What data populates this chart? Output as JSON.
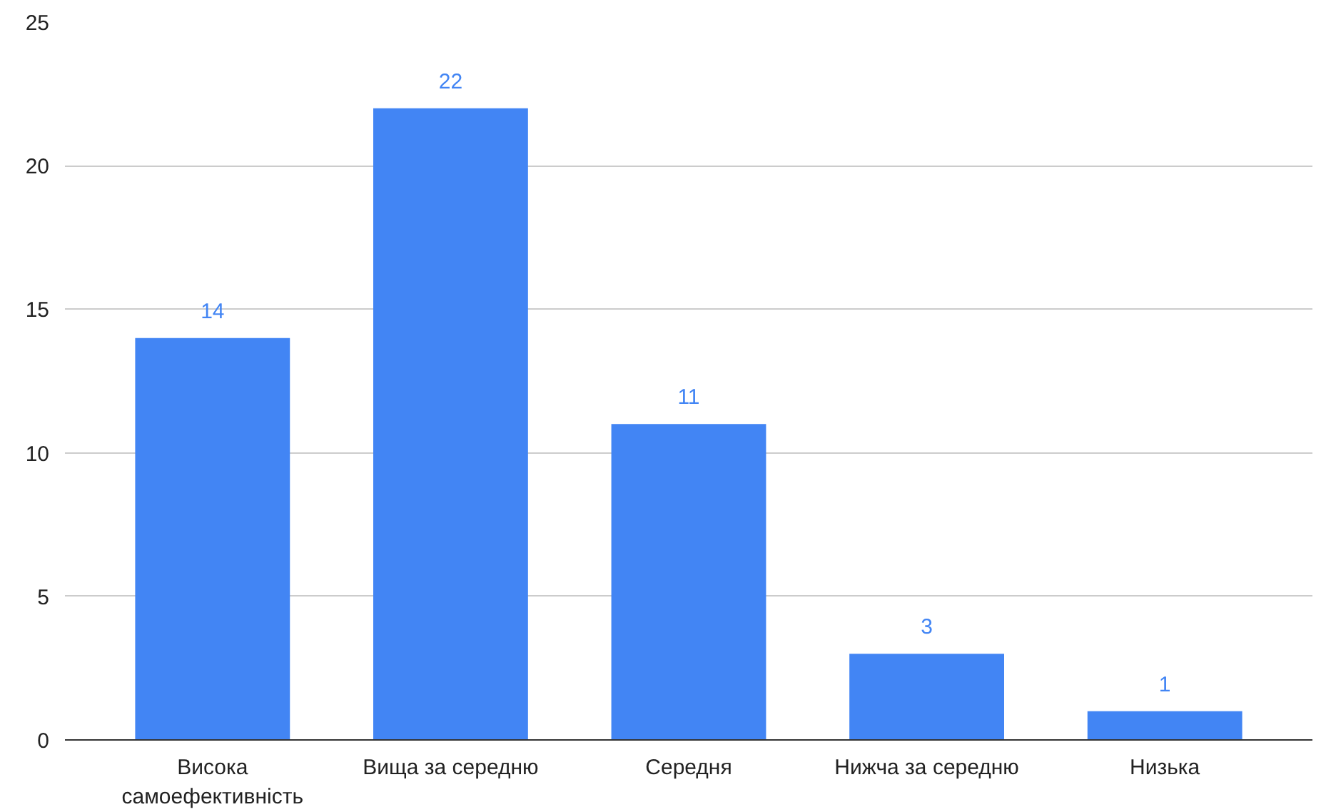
{
  "chart_data": {
    "type": "bar",
    "categories": [
      "Висока самоефективність",
      "Вища за середню",
      "Середня",
      "Нижча за середню",
      "Низька"
    ],
    "values": [
      14,
      22,
      11,
      3,
      1
    ],
    "color": "#4285f4",
    "ylim": [
      0,
      25
    ],
    "yticks": [
      0,
      5,
      10,
      15,
      20,
      25
    ],
    "grid": "y",
    "data_labels": true
  }
}
